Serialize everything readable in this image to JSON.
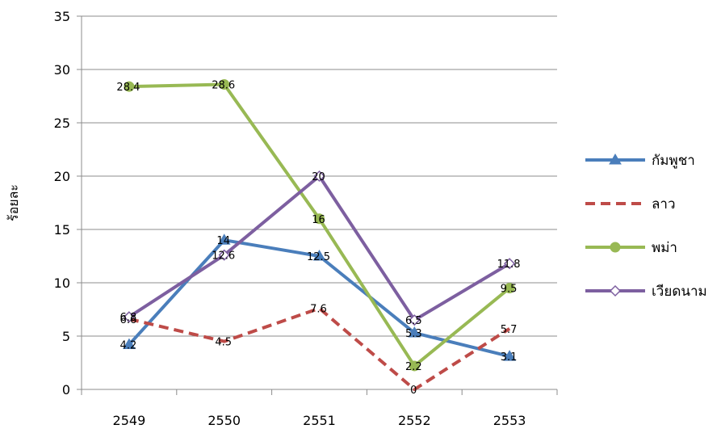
{
  "chart_data": {
    "type": "line",
    "title": "",
    "xlabel": "",
    "ylabel": "ร้อยละ",
    "categories": [
      "2549",
      "2550",
      "2551",
      "2552",
      "2553"
    ],
    "ylim": [
      0,
      35
    ],
    "yticks": [
      0,
      5,
      10,
      15,
      20,
      25,
      30,
      35
    ],
    "grid": true,
    "legend_position": "right",
    "series": [
      {
        "name": "กัมพูชา",
        "values": [
          4.2,
          14,
          12.5,
          5.3,
          3.1
        ],
        "labels": [
          "4.2",
          "14",
          "12.5",
          "5.3",
          "3.1"
        ],
        "color": "#4a7ebb",
        "marker": "triangle",
        "dash": "solid"
      },
      {
        "name": "ลาว",
        "values": [
          6.6,
          4.5,
          7.6,
          0,
          5.7
        ],
        "labels": [
          "6.6",
          "4.5",
          "7.6",
          "0",
          "5.7"
        ],
        "color": "#be4b48",
        "marker": "none",
        "dash": "dashed"
      },
      {
        "name": "พม่า",
        "values": [
          28.4,
          28.6,
          16,
          2.2,
          9.5
        ],
        "labels": [
          "28.4",
          "28.6",
          "16",
          "2.2",
          "9.5"
        ],
        "color": "#98b954",
        "marker": "circle",
        "dash": "solid"
      },
      {
        "name": "เวียดนาม",
        "values": [
          6.8,
          12.6,
          20,
          6.5,
          11.8
        ],
        "labels": [
          "6.8",
          "12.6",
          "20",
          "6.5",
          "11.8"
        ],
        "color": "#7d5fa0",
        "marker": "diamond",
        "dash": "solid"
      }
    ]
  }
}
